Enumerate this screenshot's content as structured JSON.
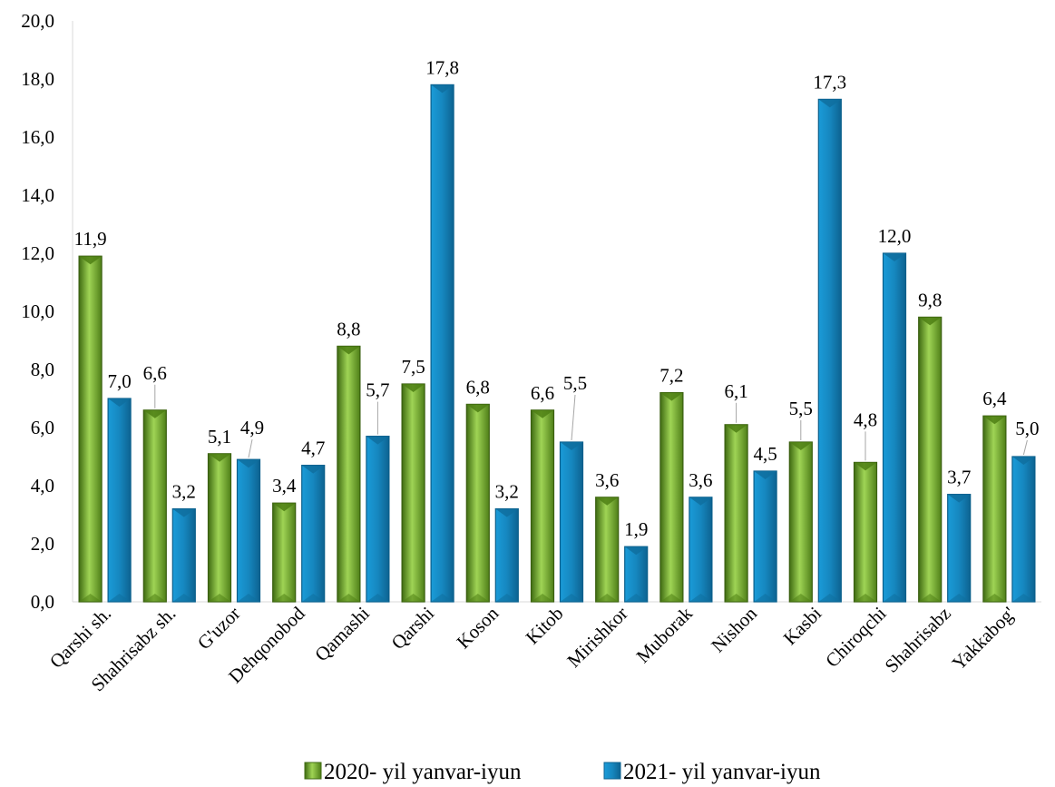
{
  "chart_data": {
    "type": "bar",
    "categories": [
      "Qarshi sh.",
      "Shahrisabz sh.",
      "G'uzor",
      "Dehqonobod",
      "Qamashi",
      "Qarshi",
      "Koson",
      "Kitob",
      "Mirishkor",
      "Muborak",
      "Nishon",
      "Kasbi",
      "Chiroqchi",
      "Shahrisabz",
      "Yakkabog'"
    ],
    "series": [
      {
        "name": "2020- yil yanvar-iyun",
        "color": "#6aa121",
        "values": [
          11.9,
          6.6,
          5.1,
          3.4,
          8.8,
          7.5,
          6.8,
          6.6,
          3.6,
          7.2,
          6.1,
          5.5,
          4.8,
          9.8,
          6.4
        ],
        "labels": [
          "11,9",
          "6,6",
          "5,1",
          "3,4",
          "8,8",
          "7,5",
          "6,8",
          "6,6",
          "3,6",
          "7,2",
          "6,1",
          "5,5",
          "4,8",
          "9,8",
          "6,4"
        ]
      },
      {
        "name": "2021- yil yanvar-iyun",
        "color": "#1a8bc4",
        "values": [
          7.0,
          3.2,
          4.9,
          4.7,
          5.7,
          17.8,
          3.2,
          5.5,
          1.9,
          3.6,
          4.5,
          17.3,
          12.0,
          3.7,
          5.0
        ],
        "labels": [
          "7,0",
          "3,2",
          "4,9",
          "4,7",
          "5,7",
          "17,8",
          "3,2",
          "5,5",
          "1,9",
          "3,6",
          "4,5",
          "17,3",
          "12,0",
          "3,7",
          "5,0"
        ]
      }
    ],
    "ylim": [
      0,
      20
    ],
    "yticks": [
      "0,0",
      "2,0",
      "4,0",
      "6,0",
      "8,0",
      "10,0",
      "12,0",
      "14,0",
      "16,0",
      "18,0",
      "20,0"
    ],
    "legend_position": "bottom",
    "grid": false
  }
}
